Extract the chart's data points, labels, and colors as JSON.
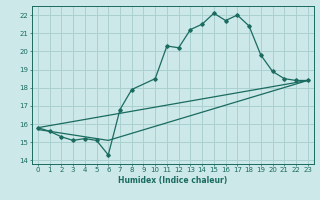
{
  "xlabel": "Humidex (Indice chaleur)",
  "ylabel": "",
  "bg_color": "#cce8e8",
  "grid_color": "#aad0d0",
  "line_color": "#1a6b60",
  "xlim": [
    -0.5,
    23.5
  ],
  "ylim": [
    13.8,
    22.5
  ],
  "xticks": [
    0,
    1,
    2,
    3,
    4,
    5,
    6,
    7,
    8,
    9,
    10,
    11,
    12,
    13,
    14,
    15,
    16,
    17,
    18,
    19,
    20,
    21,
    22,
    23
  ],
  "yticks": [
    14,
    15,
    16,
    17,
    18,
    19,
    20,
    21,
    22
  ],
  "line1_x": [
    0,
    1,
    2,
    3,
    4,
    5,
    6,
    7,
    8,
    10,
    11,
    12,
    13,
    14,
    15,
    16,
    17,
    18,
    19,
    20,
    21,
    22,
    23
  ],
  "line1_y": [
    15.8,
    15.6,
    15.3,
    15.1,
    15.2,
    15.1,
    14.3,
    16.8,
    17.9,
    18.5,
    20.3,
    20.2,
    21.2,
    21.5,
    22.1,
    21.7,
    22.0,
    21.4,
    19.8,
    18.9,
    18.5,
    18.4,
    18.4
  ],
  "line2_x": [
    0,
    6,
    23
  ],
  "line2_y": [
    15.7,
    15.1,
    18.4
  ],
  "line3_x": [
    0,
    23
  ],
  "line3_y": [
    15.8,
    18.4
  ]
}
